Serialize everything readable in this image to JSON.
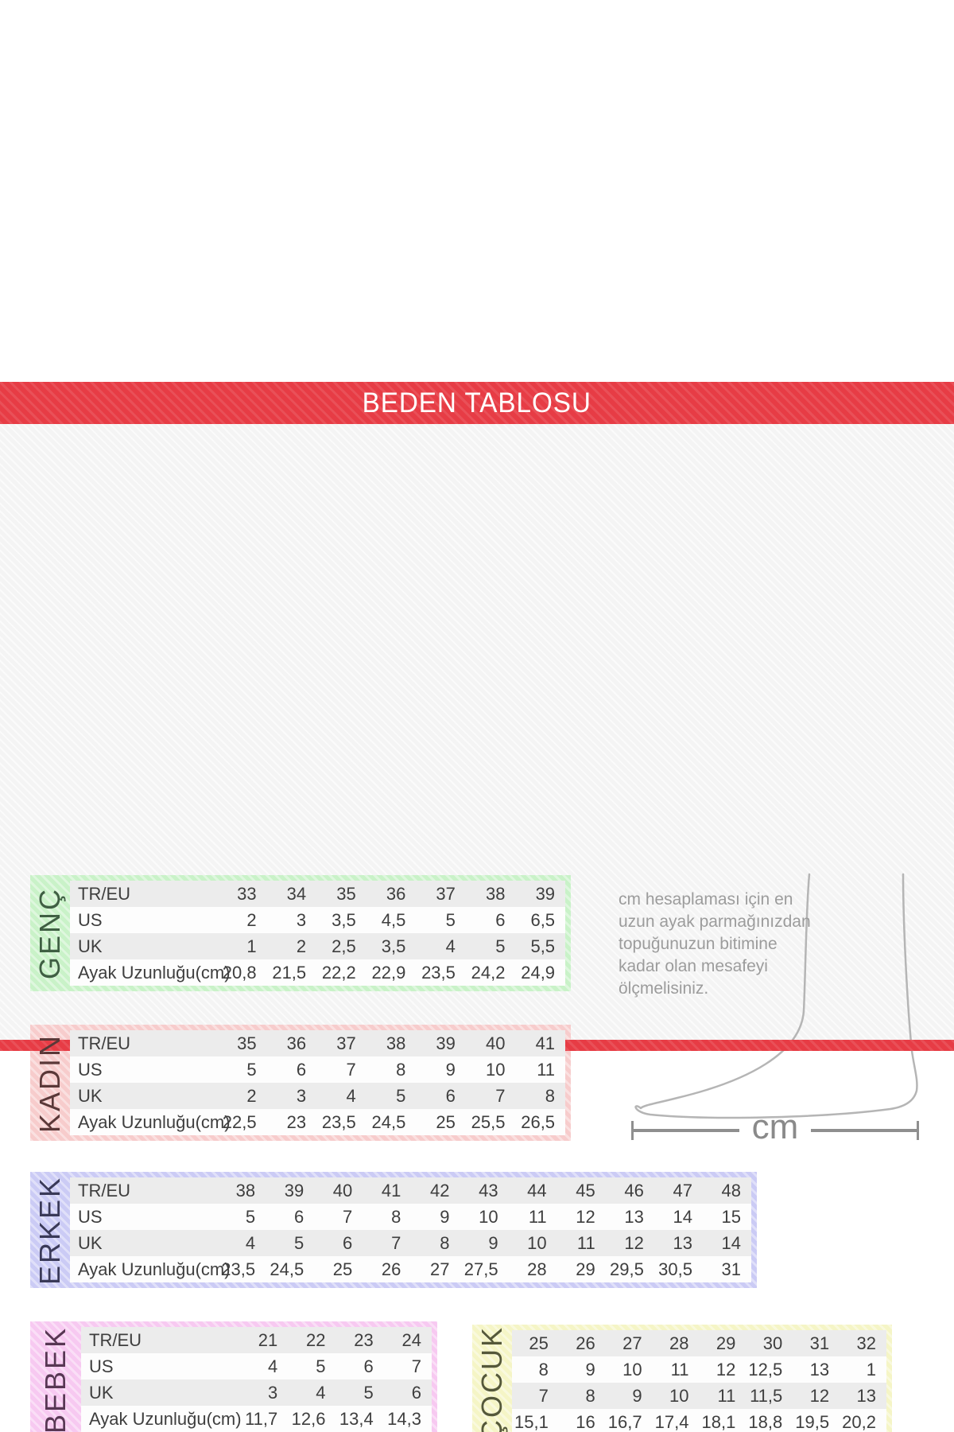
{
  "banner": {
    "title": "BEDEN TABLOSU"
  },
  "colors": {
    "banner_red": "#e73c45",
    "table_shade_row": "#ececec",
    "table_text": "#3e3e3e",
    "note_gray": "#9c9c9c",
    "foot_outline_gray": "#b5b5b5"
  },
  "note": {
    "text": "cm hesaplaması için en uzun ayak parmağınızdan topuğunuzun bitimine kadar olan mesafeyi ölçmelisiniz."
  },
  "measure": {
    "unit_label": "cm"
  },
  "sections": [
    {
      "id": "genc",
      "label": "GENÇ",
      "bg": "#c9f2c8",
      "label_color": "#3f5f43",
      "rows": [
        {
          "label": "TR/EU",
          "values": [
            "33",
            "34",
            "35",
            "36",
            "37",
            "38",
            "39"
          ]
        },
        {
          "label": "US",
          "values": [
            "2",
            "3",
            "3,5",
            "4,5",
            "5",
            "6",
            "6,5"
          ]
        },
        {
          "label": "UK",
          "values": [
            "1",
            "2",
            "2,5",
            "3,5",
            "4",
            "5",
            "5,5"
          ]
        },
        {
          "label": "Ayak Uzunluğu(cm)",
          "values": [
            "20,8",
            "21,5",
            "22,2",
            "22,9",
            "23,5",
            "24,2",
            "24,9"
          ]
        }
      ]
    },
    {
      "id": "kadin",
      "label": "KADIN",
      "bg": "#f7cccc",
      "label_color": "#5a3838",
      "rows": [
        {
          "label": "TR/EU",
          "values": [
            "35",
            "36",
            "37",
            "38",
            "39",
            "40",
            "41"
          ]
        },
        {
          "label": "US",
          "values": [
            "5",
            "6",
            "7",
            "8",
            "9",
            "10",
            "11"
          ]
        },
        {
          "label": "UK",
          "values": [
            "2",
            "3",
            "4",
            "5",
            "6",
            "7",
            "8"
          ]
        },
        {
          "label": "Ayak Uzunluğu(cm)",
          "values": [
            "22,5",
            "23",
            "23,5",
            "24,5",
            "25",
            "25,5",
            "26,5"
          ]
        }
      ]
    },
    {
      "id": "erkek",
      "label": "ERKEK",
      "bg": "#cbcbf5",
      "label_color": "#3a3a58",
      "rows": [
        {
          "label": "TR/EU",
          "values": [
            "38",
            "39",
            "40",
            "41",
            "42",
            "43",
            "44",
            "45",
            "46",
            "47",
            "48"
          ]
        },
        {
          "label": "US",
          "values": [
            "5",
            "6",
            "7",
            "8",
            "9",
            "10",
            "11",
            "12",
            "13",
            "14",
            "15"
          ]
        },
        {
          "label": "UK",
          "values": [
            "4",
            "5",
            "6",
            "7",
            "8",
            "9",
            "10",
            "11",
            "12",
            "13",
            "14"
          ]
        },
        {
          "label": "Ayak Uzunluğu(cm)",
          "values": [
            "23,5",
            "24,5",
            "25",
            "26",
            "27",
            "27,5",
            "28",
            "29",
            "29,5",
            "30,5",
            "31"
          ]
        }
      ]
    },
    {
      "id": "bebek",
      "label": "BEBEK",
      "bg": "#f7c9f1",
      "label_color": "#583754",
      "rows": [
        {
          "label": "TR/EU",
          "values": [
            "21",
            "22",
            "23",
            "24"
          ]
        },
        {
          "label": "US",
          "values": [
            "4",
            "5",
            "6",
            "7"
          ]
        },
        {
          "label": "UK",
          "values": [
            "3",
            "4",
            "5",
            "6"
          ]
        },
        {
          "label": "Ayak Uzunluğu(cm)",
          "values": [
            "11,7",
            "12,6",
            "13,4",
            "14,3"
          ]
        }
      ]
    },
    {
      "id": "cocuk",
      "label": "ÇOCUK",
      "bg": "#f5f5c6",
      "label_color": "#55583a",
      "rows": [
        {
          "label": "",
          "values": [
            "25",
            "26",
            "27",
            "28",
            "29",
            "30",
            "31",
            "32"
          ]
        },
        {
          "label": "",
          "values": [
            "8",
            "9",
            "10",
            "11",
            "12",
            "12,5",
            "13",
            "1"
          ]
        },
        {
          "label": "",
          "values": [
            "7",
            "8",
            "9",
            "10",
            "11",
            "11,5",
            "12",
            "13"
          ]
        },
        {
          "label": "",
          "values": [
            "15,1",
            "16",
            "16,7",
            "17,4",
            "18,1",
            "18,8",
            "19,5",
            "20,2"
          ]
        }
      ]
    }
  ]
}
